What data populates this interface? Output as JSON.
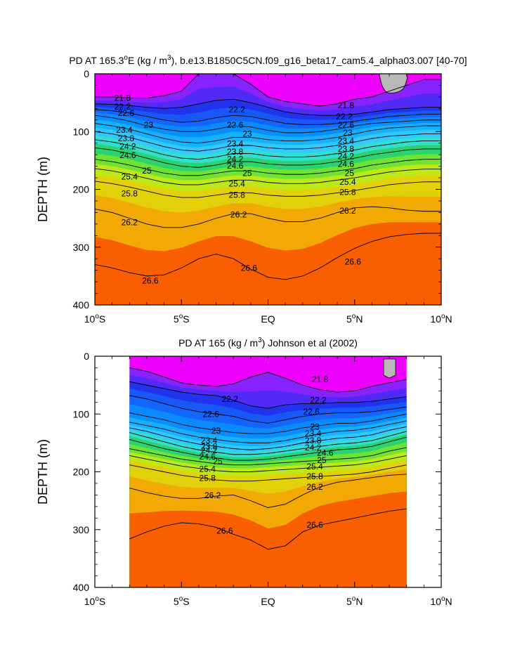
{
  "chart_data": [
    {
      "type": "contour",
      "title_prefix": "PD AT 165.3",
      "title_sup": "o",
      "title_mid": "E (kg / m",
      "title_sup2": "3",
      "title_suffix": "), b.e13.B1850C5CN.f09_g16_beta17_cam5.4_alpha03.007 [40-70]",
      "ylabel": "DEPTH (m)",
      "xlabel": "",
      "xlim": [
        -10,
        10
      ],
      "ylim": [
        0,
        400
      ],
      "data_xlim": [
        -10,
        10
      ],
      "x_ticks": [
        {
          "value": -10,
          "main": "10",
          "sup": "o",
          "suffix": "S"
        },
        {
          "value": -5,
          "main": "5",
          "sup": "o",
          "suffix": "S"
        },
        {
          "value": 0,
          "main": "EQ",
          "sup": "",
          "suffix": ""
        },
        {
          "value": 5,
          "main": "5",
          "sup": "o",
          "suffix": "N"
        },
        {
          "value": 10,
          "main": "10",
          "sup": "o",
          "suffix": "N"
        }
      ],
      "y_ticks": [
        "0",
        "100",
        "200",
        "300",
        "400"
      ],
      "y_tick_values": [
        0,
        100,
        200,
        300,
        400
      ],
      "contour_levels": [
        21.8,
        22.2,
        22.6,
        23,
        23.4,
        23.8,
        24.2,
        24.6,
        25,
        25.4,
        25.8,
        26.2,
        26.6
      ],
      "contour_labels": [
        {
          "text": "21.8",
          "x": -8.4,
          "y": 42
        },
        {
          "text": "22.2",
          "x": -8.4,
          "y": 57
        },
        {
          "text": "22.6",
          "x": -8.2,
          "y": 68
        },
        {
          "text": "23.4",
          "x": -8.3,
          "y": 97
        },
        {
          "text": "23",
          "x": -6.9,
          "y": 89
        },
        {
          "text": "23.8",
          "x": -8.2,
          "y": 112
        },
        {
          "text": "24.2",
          "x": -8.1,
          "y": 126
        },
        {
          "text": "24.6",
          "x": -8.1,
          "y": 141
        },
        {
          "text": "25",
          "x": -7.0,
          "y": 168
        },
        {
          "text": "25.4",
          "x": -8.0,
          "y": 178
        },
        {
          "text": "25.8",
          "x": -8.0,
          "y": 207
        },
        {
          "text": "26.2",
          "x": -8.0,
          "y": 257
        },
        {
          "text": "26.6",
          "x": -6.8,
          "y": 358
        },
        {
          "text": "22.2",
          "x": -1.8,
          "y": 62
        },
        {
          "text": "22.6",
          "x": -1.9,
          "y": 89
        },
        {
          "text": "23",
          "x": -1.2,
          "y": 104
        },
        {
          "text": "23.4",
          "x": -1.9,
          "y": 121
        },
        {
          "text": "23.8",
          "x": -1.9,
          "y": 135
        },
        {
          "text": "24.2",
          "x": -1.9,
          "y": 148
        },
        {
          "text": "24.6",
          "x": -1.9,
          "y": 159
        },
        {
          "text": "25",
          "x": -1.2,
          "y": 172
        },
        {
          "text": "25.4",
          "x": -1.8,
          "y": 190
        },
        {
          "text": "25.8",
          "x": -1.8,
          "y": 210
        },
        {
          "text": "26.2",
          "x": -1.7,
          "y": 244
        },
        {
          "text": "26.6",
          "x": -1.1,
          "y": 336
        },
        {
          "text": "21.8",
          "x": 4.5,
          "y": 55
        },
        {
          "text": "22.2",
          "x": 4.4,
          "y": 74
        },
        {
          "text": "22.6",
          "x": 4.5,
          "y": 89
        },
        {
          "text": "23",
          "x": 4.6,
          "y": 102
        },
        {
          "text": "23.4",
          "x": 4.5,
          "y": 116
        },
        {
          "text": "23.8",
          "x": 4.5,
          "y": 130
        },
        {
          "text": "24.2",
          "x": 4.5,
          "y": 143
        },
        {
          "text": "24.6",
          "x": 4.5,
          "y": 156
        },
        {
          "text": "25",
          "x": 4.7,
          "y": 172
        },
        {
          "text": "25.4",
          "x": 4.6,
          "y": 187
        },
        {
          "text": "25.8",
          "x": 4.6,
          "y": 205
        },
        {
          "text": "26.2",
          "x": 4.6,
          "y": 237
        },
        {
          "text": "26.6",
          "x": 4.9,
          "y": 325
        }
      ],
      "series": [
        {
          "level": 21.8,
          "depths": [
            40,
            40,
            42,
            42,
            38,
            30,
            0,
            0,
            0,
            18,
            40,
            48,
            52,
            56,
            52,
            44,
            40,
            30,
            20,
            10,
            10
          ]
        },
        {
          "level": 22.2,
          "depths": [
            52,
            53,
            55,
            58,
            60,
            58,
            52,
            46,
            44,
            50,
            58,
            66,
            70,
            72,
            72,
            70,
            66,
            62,
            60,
            58,
            58
          ]
        },
        {
          "level": 22.6,
          "depths": [
            62,
            64,
            68,
            74,
            80,
            84,
            82,
            76,
            72,
            74,
            80,
            86,
            88,
            88,
            86,
            82,
            78,
            74,
            72,
            70,
            70
          ]
        },
        {
          "level": 23.0,
          "depths": [
            72,
            76,
            82,
            90,
            96,
            100,
            100,
            96,
            90,
            92,
            98,
            102,
            102,
            100,
            96,
            90,
            86,
            84,
            82,
            80,
            80
          ]
        },
        {
          "level": 23.4,
          "depths": [
            86,
            90,
            96,
            104,
            112,
            118,
            120,
            116,
            110,
            110,
            114,
            116,
            116,
            114,
            110,
            104,
            98,
            94,
            92,
            90,
            90
          ]
        },
        {
          "level": 23.8,
          "depths": [
            100,
            104,
            110,
            118,
            126,
            132,
            134,
            130,
            124,
            124,
            128,
            130,
            130,
            128,
            124,
            118,
            112,
            108,
            106,
            104,
            104
          ]
        },
        {
          "level": 24.2,
          "depths": [
            114,
            118,
            124,
            132,
            140,
            146,
            148,
            144,
            138,
            138,
            142,
            144,
            144,
            142,
            138,
            132,
            126,
            122,
            118,
            116,
            116
          ]
        },
        {
          "level": 24.6,
          "depths": [
            128,
            132,
            138,
            146,
            154,
            160,
            162,
            158,
            152,
            152,
            156,
            158,
            158,
            156,
            152,
            146,
            140,
            136,
            132,
            130,
            130
          ]
        },
        {
          "level": 25.0,
          "depths": [
            148,
            152,
            158,
            165,
            172,
            176,
            176,
            172,
            168,
            168,
            172,
            174,
            174,
            172,
            168,
            164,
            158,
            154,
            150,
            148,
            148
          ]
        },
        {
          "level": 25.4,
          "depths": [
            164,
            168,
            174,
            181,
            188,
            192,
            192,
            188,
            184,
            184,
            188,
            190,
            190,
            188,
            184,
            180,
            175,
            170,
            167,
            165,
            165
          ]
        },
        {
          "level": 25.8,
          "depths": [
            186,
            190,
            196,
            203,
            210,
            214,
            214,
            210,
            206,
            206,
            210,
            212,
            212,
            210,
            206,
            202,
            197,
            192,
            189,
            187,
            187
          ]
        },
        {
          "level": 26.2,
          "depths": [
            234,
            240,
            250,
            260,
            266,
            266,
            260,
            250,
            242,
            242,
            250,
            256,
            256,
            250,
            240,
            232,
            230,
            232,
            236,
            238,
            238
          ]
        },
        {
          "level": 26.6,
          "depths": [
            330,
            336,
            344,
            350,
            348,
            336,
            320,
            312,
            320,
            338,
            352,
            356,
            350,
            336,
            318,
            302,
            290,
            282,
            278,
            276,
            276
          ]
        }
      ]
    },
    {
      "type": "contour",
      "title_prefix": "PD AT 165 (kg / m",
      "title_sup": "3",
      "title_suffix": ") Johnson et al (2002)",
      "ylabel": "DEPTH (m)",
      "xlabel": "",
      "xlim": [
        -10,
        10
      ],
      "ylim": [
        0,
        400
      ],
      "data_xlim": [
        -8,
        8
      ],
      "x_ticks": [
        {
          "value": -10,
          "main": "10",
          "sup": "o",
          "suffix": "S"
        },
        {
          "value": -5,
          "main": "5",
          "sup": "o",
          "suffix": "S"
        },
        {
          "value": 0,
          "main": "EQ",
          "sup": "",
          "suffix": ""
        },
        {
          "value": 5,
          "main": "5",
          "sup": "o",
          "suffix": "N"
        },
        {
          "value": 10,
          "main": "10",
          "sup": "o",
          "suffix": "N"
        }
      ],
      "y_ticks": [
        "0",
        "100",
        "200",
        "300",
        "400"
      ],
      "y_tick_values": [
        0,
        100,
        200,
        300,
        400
      ],
      "contour_levels": [
        21.8,
        22.2,
        22.6,
        23,
        23.4,
        23.8,
        24.2,
        24.6,
        25,
        25.4,
        25.8,
        26.2,
        26.6
      ],
      "contour_labels": [
        {
          "text": "21.8",
          "x": 3.0,
          "y": 40
        },
        {
          "text": "22.2",
          "x": -2.2,
          "y": 74
        },
        {
          "text": "22.2",
          "x": 2.9,
          "y": 76
        },
        {
          "text": "22.6",
          "x": -3.3,
          "y": 100
        },
        {
          "text": "22.6",
          "x": 2.5,
          "y": 96
        },
        {
          "text": "23",
          "x": -3.0,
          "y": 129
        },
        {
          "text": "23",
          "x": 2.7,
          "y": 122
        },
        {
          "text": "23.4",
          "x": -3.4,
          "y": 146
        },
        {
          "text": "23.4",
          "x": 2.6,
          "y": 134
        },
        {
          "text": "23.8",
          "x": -3.4,
          "y": 156
        },
        {
          "text": "23.8",
          "x": 2.6,
          "y": 146
        },
        {
          "text": "24.2",
          "x": -3.4,
          "y": 163
        },
        {
          "text": "24.2",
          "x": 2.6,
          "y": 158
        },
        {
          "text": "24.6",
          "x": -3.5,
          "y": 174
        },
        {
          "text": "24.6",
          "x": 3.3,
          "y": 167
        },
        {
          "text": "25",
          "x": -2.9,
          "y": 182
        },
        {
          "text": "25",
          "x": 3.1,
          "y": 180
        },
        {
          "text": "25.4",
          "x": -3.5,
          "y": 195
        },
        {
          "text": "25.4",
          "x": 2.7,
          "y": 191
        },
        {
          "text": "25.8",
          "x": -3.5,
          "y": 211
        },
        {
          "text": "25.8",
          "x": 2.7,
          "y": 208
        },
        {
          "text": "26.2",
          "x": -3.2,
          "y": 241
        },
        {
          "text": "26.2",
          "x": 2.7,
          "y": 226
        },
        {
          "text": "26.6",
          "x": -2.5,
          "y": 302
        },
        {
          "text": "26.6",
          "x": 2.7,
          "y": 292
        }
      ],
      "series": [
        {
          "level": 21.8,
          "depths": [
            20,
            26,
            36,
            46,
            50,
            52,
            48,
            36,
            28,
            38,
            50,
            58,
            62,
            60,
            52,
            46,
            40
          ]
        },
        {
          "level": 22.2,
          "depths": [
            44,
            50,
            56,
            62,
            66,
            68,
            76,
            86,
            90,
            84,
            82,
            82,
            80,
            80,
            78,
            74,
            70
          ]
        },
        {
          "level": 22.6,
          "depths": [
            68,
            74,
            82,
            90,
            96,
            100,
            104,
            112,
            116,
            110,
            104,
            100,
            98,
            98,
            96,
            92,
            88
          ]
        },
        {
          "level": 23.0,
          "depths": [
            98,
            104,
            110,
            118,
            124,
            128,
            132,
            134,
            134,
            130,
            124,
            120,
            116,
            116,
            112,
            106,
            100
          ]
        },
        {
          "level": 23.4,
          "depths": [
            114,
            120,
            126,
            134,
            140,
            144,
            148,
            150,
            150,
            146,
            140,
            134,
            130,
            128,
            124,
            118,
            112
          ]
        },
        {
          "level": 23.8,
          "depths": [
            124,
            130,
            138,
            146,
            152,
            156,
            160,
            162,
            160,
            156,
            150,
            146,
            142,
            140,
            136,
            128,
            122
          ]
        },
        {
          "level": 24.2,
          "depths": [
            132,
            140,
            148,
            156,
            162,
            166,
            170,
            170,
            168,
            164,
            160,
            156,
            152,
            150,
            146,
            138,
            130
          ]
        },
        {
          "level": 24.6,
          "depths": [
            144,
            152,
            160,
            166,
            172,
            176,
            180,
            180,
            178,
            174,
            170,
            166,
            162,
            160,
            156,
            148,
            140
          ]
        },
        {
          "level": 25.0,
          "depths": [
            160,
            166,
            172,
            178,
            182,
            186,
            188,
            188,
            186,
            184,
            182,
            180,
            178,
            176,
            172,
            164,
            158
          ]
        },
        {
          "level": 25.4,
          "depths": [
            172,
            178,
            184,
            190,
            194,
            198,
            200,
            200,
            198,
            196,
            194,
            192,
            190,
            188,
            184,
            178,
            172
          ]
        },
        {
          "level": 25.8,
          "depths": [
            188,
            194,
            200,
            206,
            210,
            214,
            216,
            216,
            214,
            212,
            210,
            208,
            206,
            204,
            200,
            194,
            188
          ]
        },
        {
          "level": 26.2,
          "depths": [
            228,
            236,
            242,
            246,
            246,
            242,
            240,
            250,
            262,
            256,
            240,
            226,
            218,
            214,
            210,
            206,
            204
          ]
        },
        {
          "level": 26.6,
          "depths": [
            316,
            304,
            294,
            288,
            290,
            296,
            308,
            318,
            334,
            328,
            304,
            292,
            286,
            280,
            274,
            268,
            264
          ]
        }
      ]
    }
  ]
}
